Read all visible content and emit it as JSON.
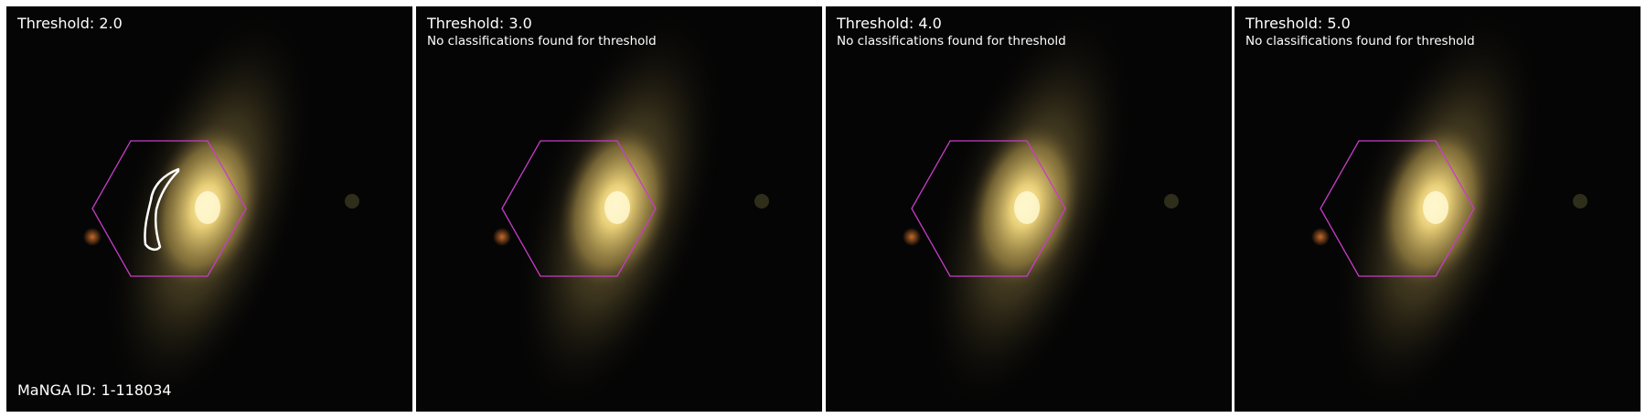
{
  "panels": [
    {
      "title": "Threshold: 2.0",
      "message": "",
      "footer": "MaNGA ID: 1-118034"
    },
    {
      "title": "Threshold: 3.0",
      "message": "No classifications found for threshold",
      "footer": ""
    },
    {
      "title": "Threshold: 4.0",
      "message": "No classifications found for threshold",
      "footer": ""
    },
    {
      "title": "Threshold: 5.0",
      "message": "No classifications found for threshold",
      "footer": ""
    }
  ],
  "colors": {
    "background": "#050505",
    "hexagon_outline": "#c83cc8",
    "classification_outline": "#ffffff",
    "galaxy_core": "#fff2a8",
    "galaxy_halo": "#8a7a3a"
  }
}
